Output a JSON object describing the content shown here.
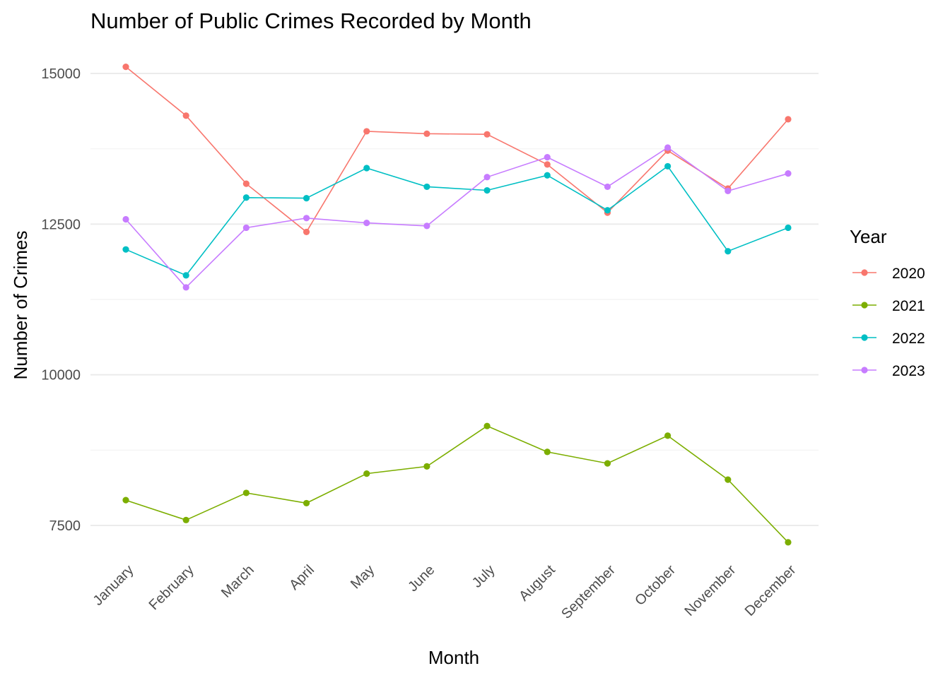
{
  "chart_data": {
    "type": "line",
    "title": "Number of Public Crimes Recorded by Month",
    "xlabel": "Month",
    "ylabel": "Number of Crimes",
    "categories": [
      "January",
      "February",
      "March",
      "April",
      "May",
      "June",
      "July",
      "August",
      "September",
      "October",
      "November",
      "December"
    ],
    "ylim": [
      6800,
      15400
    ],
    "yticks": [
      7500,
      10000,
      12500,
      15000
    ],
    "grid": true,
    "legend_title": "Year",
    "legend_position": "right",
    "series": [
      {
        "name": "2020",
        "color": "#f8766d",
        "values": [
          15110,
          14300,
          13170,
          12370,
          14040,
          14000,
          13990,
          13490,
          12690,
          13720,
          13090,
          14240
        ]
      },
      {
        "name": "2021",
        "color": "#7cae00",
        "values": [
          7920,
          7590,
          8040,
          7870,
          8360,
          8480,
          9150,
          8720,
          8530,
          8990,
          8260,
          7220
        ]
      },
      {
        "name": "2022",
        "color": "#00bfc4",
        "values": [
          12080,
          11650,
          12940,
          12930,
          13430,
          13120,
          13060,
          13310,
          12730,
          13460,
          12050,
          12440
        ]
      },
      {
        "name": "2023",
        "color": "#c77cff",
        "values": [
          12580,
          11450,
          12440,
          12600,
          12520,
          12470,
          13280,
          13610,
          13120,
          13770,
          13050,
          13340
        ]
      }
    ]
  }
}
